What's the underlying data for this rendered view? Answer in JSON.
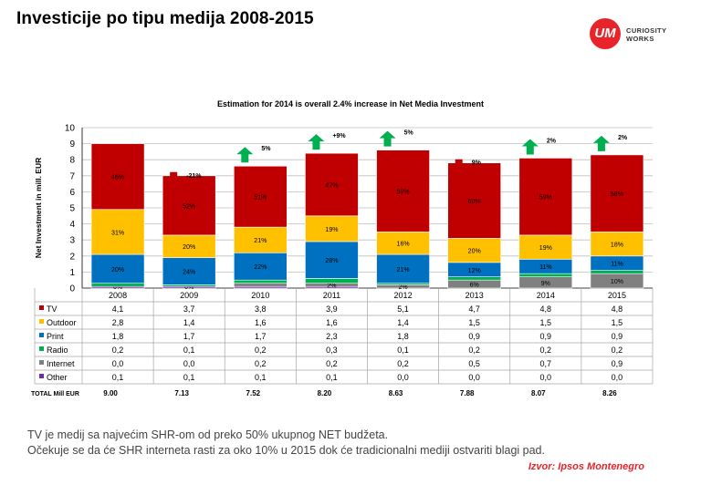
{
  "title": "Investicije po tipu medija 2008-2015",
  "logo": {
    "mark": "UM",
    "line1": "CURIOSITY",
    "line2": "WORKS"
  },
  "footer": {
    "line1": "TV je medij sa najvećim SHR-om od preko 50% ukupnog  NET budžeta.",
    "line2": "Očekuje se da će SHR interneta rasti za oko 10% u 2015 dok će tradicionalni mediji ostvariti blagi pad.",
    "source": "Izvor: Ipsos Montenegro"
  },
  "chart_data": {
    "type": "bar",
    "stacked": true,
    "title": "Estimation for 2014 is overall 2.4% increase in Net Media Investment",
    "ylabel": "Net Investment in mill. EUR",
    "ylim": [
      0,
      10
    ],
    "yticks": [
      "0",
      "1",
      "2",
      "3",
      "4",
      "5",
      "6",
      "7",
      "8",
      "9",
      "10"
    ],
    "grid": true,
    "categories": [
      "2008",
      "2009",
      "2010",
      "2011",
      "2012",
      "2013",
      "2014",
      "2015"
    ],
    "series": [
      {
        "name": "TV",
        "color": "#c00000",
        "values": [
          4.1,
          3.7,
          3.8,
          3.9,
          5.1,
          4.7,
          4.8,
          4.8
        ],
        "labels": [
          "4,1",
          "3,7",
          "3,8",
          "3,9",
          "5,1",
          "4,7",
          "4,8",
          "4,8"
        ],
        "share": [
          "46%",
          "52%",
          "51%",
          "47%",
          "59%",
          "60%",
          "59%",
          "58%"
        ]
      },
      {
        "name": "Outdoor",
        "color": "#ffc000",
        "values": [
          2.8,
          1.4,
          1.6,
          1.6,
          1.4,
          1.5,
          1.5,
          1.5
        ],
        "labels": [
          "2,8",
          "1,4",
          "1,6",
          "1,6",
          "1,4",
          "1,5",
          "1,5",
          "1,5"
        ],
        "share": [
          "31%",
          "20%",
          "21%",
          "19%",
          "16%",
          "20%",
          "19%",
          "18%"
        ]
      },
      {
        "name": "Print",
        "color": "#0070c0",
        "values": [
          1.8,
          1.7,
          1.7,
          2.3,
          1.8,
          0.9,
          0.9,
          0.9
        ],
        "labels": [
          "1,8",
          "1,7",
          "1,7",
          "2,3",
          "1,8",
          "0,9",
          "0,9",
          "0,9"
        ],
        "share": [
          "20%",
          "24%",
          "22%",
          "28%",
          "21%",
          "12%",
          "11%",
          "11%"
        ]
      },
      {
        "name": "Radio",
        "color": "#00b050",
        "values": [
          0.2,
          0.1,
          0.2,
          0.3,
          0.1,
          0.2,
          0.2,
          0.2
        ],
        "labels": [
          "0,2",
          "0,1",
          "0,2",
          "0,3",
          "0,1",
          "0,2",
          "0,2",
          "0,2"
        ],
        "share": [
          "",
          "",
          "",
          "",
          "",
          "",
          "",
          ""
        ]
      },
      {
        "name": "Internet",
        "color": "#808080",
        "values": [
          0.0,
          0.0,
          0.2,
          0.2,
          0.2,
          0.5,
          0.7,
          0.9
        ],
        "labels": [
          "0,0",
          "0,0",
          "0,2",
          "0,2",
          "0,2",
          "0,5",
          "0,7",
          "0,9"
        ],
        "share": [
          "0%",
          "0%",
          "",
          "2%",
          "2%",
          "6%",
          "9%",
          "10%"
        ]
      },
      {
        "name": "Other",
        "color": "#7030a0",
        "values": [
          0.1,
          0.1,
          0.1,
          0.1,
          0.0,
          0.0,
          0.0,
          0.0
        ],
        "labels": [
          "0,1",
          "0,1",
          "0,1",
          "0,1",
          "0,0",
          "0,0",
          "0,0",
          "0,0"
        ],
        "share": [
          "",
          "",
          "",
          "",
          "",
          "",
          "",
          ""
        ]
      }
    ],
    "totals": {
      "label": "TOTAL Mill EUR",
      "values": [
        "9.00",
        "7.13",
        "7.52",
        "8.20",
        "8.63",
        "7.88",
        "8.07",
        "8.26"
      ]
    },
    "changes": [
      null,
      {
        "text": "-21%",
        "dir": "down"
      },
      {
        "text": "5%",
        "dir": "up"
      },
      {
        "text": "+9%",
        "dir": "up"
      },
      {
        "text": "5%",
        "dir": "up"
      },
      {
        "text": "9%",
        "dir": "down"
      },
      {
        "text": "2%",
        "dir": "up"
      },
      {
        "text": "2%",
        "dir": "up"
      }
    ]
  }
}
